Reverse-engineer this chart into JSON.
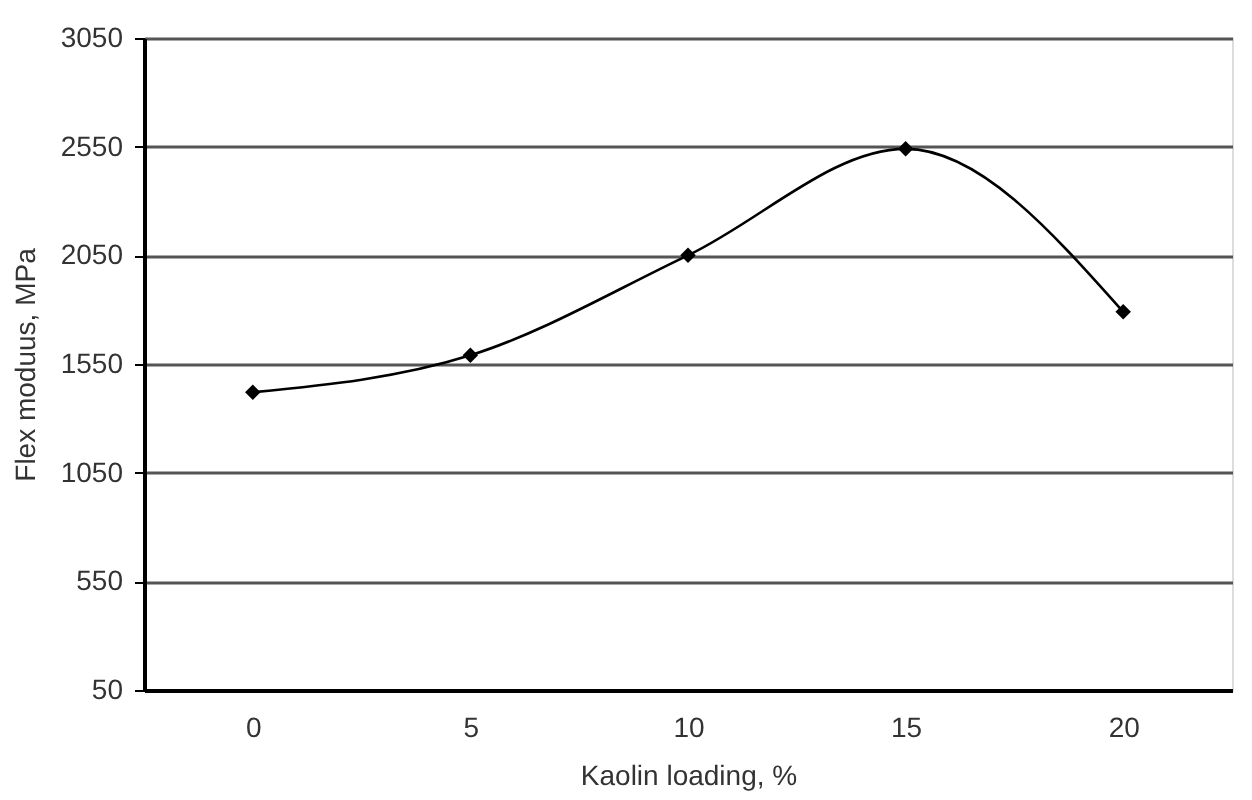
{
  "chart_data": {
    "type": "line",
    "xlabel": "Kaolin loading, %",
    "ylabel": "Flex moduus, MPa",
    "categories": [
      "0",
      "5",
      "10",
      "15",
      "20"
    ],
    "series": [
      {
        "color": "#000000",
        "values": [
          1420,
          1590,
          2050,
          2540,
          1790
        ]
      }
    ],
    "ylim": [
      50,
      3050
    ],
    "yticks": [
      50,
      550,
      1050,
      1550,
      2050,
      2550,
      3050
    ],
    "grid": "y",
    "marker": "diamond",
    "line_style": "solid",
    "legend": false
  }
}
